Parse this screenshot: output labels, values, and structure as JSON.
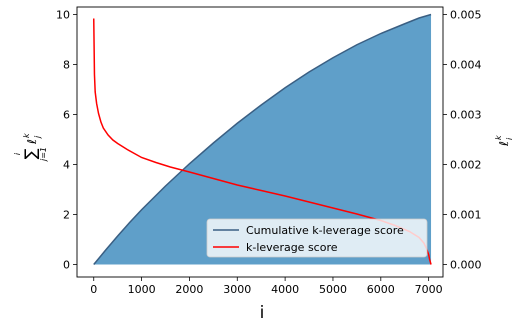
{
  "chart_data": {
    "type": "area",
    "xlabel": "i",
    "ylabel_left": "i∑j=1 ℓjk",
    "ylabel_left_parts": {
      "sum_top": "i",
      "sum_symbol": "∑",
      "sum_bottom": "j=1",
      "term": "ℓ",
      "term_sub": "j",
      "term_sup": "k"
    },
    "ylabel_right_parts": {
      "term": "ℓ",
      "term_sub": "i",
      "term_sup": "k"
    },
    "xlim": [
      -350,
      7300
    ],
    "ylim_left": [
      -0.5,
      10.3
    ],
    "ylim_right": [
      -0.00025,
      0.00515
    ],
    "x_ticks": [
      0,
      1000,
      2000,
      3000,
      4000,
      5000,
      6000,
      7000
    ],
    "x_tick_labels": [
      "0",
      "1000",
      "2000",
      "3000",
      "4000",
      "5000",
      "6000",
      "7000"
    ],
    "y_left_ticks": [
      0,
      2,
      4,
      6,
      8,
      10
    ],
    "y_left_tick_labels": [
      "0",
      "2",
      "4",
      "6",
      "8",
      "10"
    ],
    "y_right_ticks": [
      0,
      0.001,
      0.002,
      0.003,
      0.004,
      0.005
    ],
    "y_right_tick_labels": [
      "0.000",
      "0.001",
      "0.002",
      "0.003",
      "0.004",
      "0.005"
    ],
    "legend_position": "lower-right",
    "grid": false,
    "series": [
      {
        "name": "Cumulative k-leverage score",
        "axis": "left",
        "color": "#3a5f83",
        "fill": "#5f9fc9",
        "x": [
          0,
          250,
          500,
          750,
          1000,
          1500,
          2000,
          2500,
          3000,
          3500,
          4000,
          4500,
          5000,
          5500,
          6000,
          6500,
          6800,
          7050
        ],
        "y": [
          0,
          0.58,
          1.14,
          1.68,
          2.19,
          3.14,
          4.03,
          4.86,
          5.65,
          6.38,
          7.07,
          7.7,
          8.27,
          8.79,
          9.24,
          9.63,
          9.86,
          10.0
        ]
      },
      {
        "name": "k-leverage score",
        "axis": "right",
        "color": "#ff0000",
        "x": [
          0,
          15,
          30,
          60,
          100,
          150,
          200,
          300,
          400,
          500,
          700,
          1000,
          1300,
          1600,
          2000,
          2500,
          3000,
          3500,
          4000,
          4500,
          5000,
          5500,
          6000,
          6300,
          6600,
          6800,
          6900,
          6950,
          7000,
          7020,
          7050
        ],
        "y": [
          0.00492,
          0.0038,
          0.00345,
          0.00322,
          0.00302,
          0.00285,
          0.00273,
          0.00259,
          0.00249,
          0.00242,
          0.0023,
          0.00214,
          0.00204,
          0.00195,
          0.00185,
          0.00172,
          0.00159,
          0.00148,
          0.00137,
          0.00125,
          0.00113,
          0.00101,
          0.00088,
          0.00078,
          0.00066,
          0.00054,
          0.00043,
          0.00033,
          0.0002,
          0.0001,
          0.0
        ]
      }
    ]
  }
}
